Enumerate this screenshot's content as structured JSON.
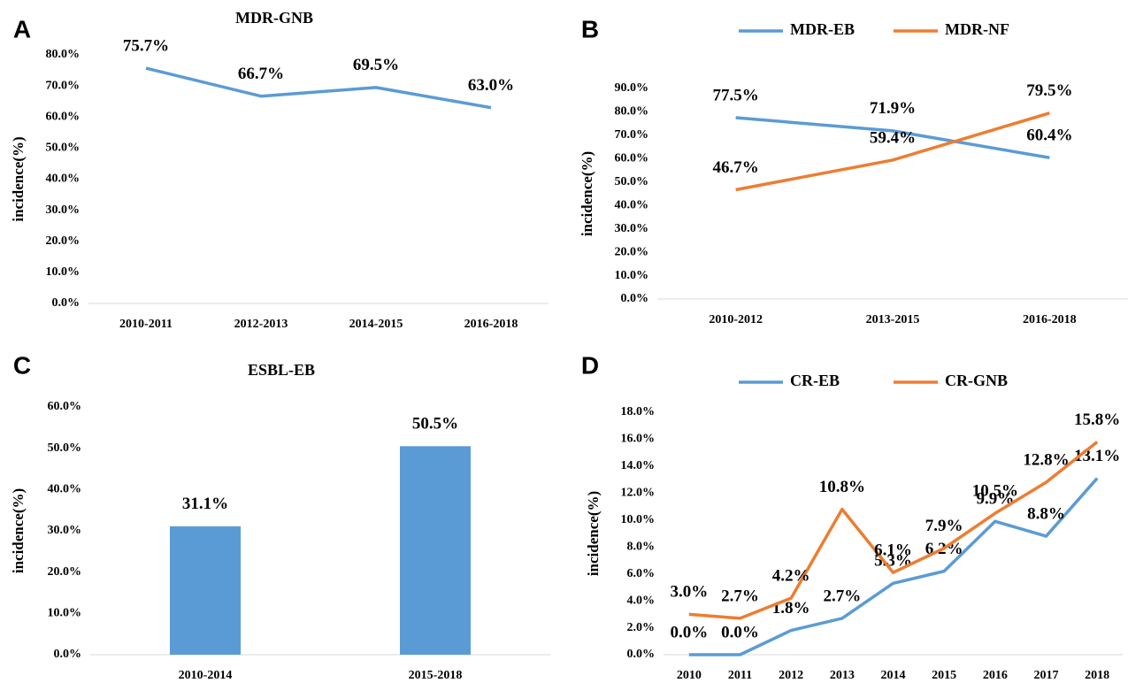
{
  "chart_data": [
    {
      "type": "line",
      "panel": "A",
      "title": "MDR-GNB",
      "y_label": "incidence(%)",
      "categories": [
        "2010-2011",
        "2012-2013",
        "2014-2015",
        "2016-2018"
      ],
      "values": [
        75.7,
        66.7,
        69.5,
        63.0
      ],
      "value_labels": [
        "75.7%",
        "66.7%",
        "69.5%",
        "63.0%"
      ],
      "color": "#5b9bd5",
      "ylim": [
        0,
        80
      ],
      "yticks": [
        {
          "value": 0,
          "label": "0.0%"
        },
        {
          "value": 10,
          "label": "10.0%"
        },
        {
          "value": 20,
          "label": "20.0%"
        },
        {
          "value": 30,
          "label": "30.0%"
        },
        {
          "value": 40,
          "label": "40.0%"
        },
        {
          "value": 50,
          "label": "50.0%"
        },
        {
          "value": 60,
          "label": "60.0%"
        },
        {
          "value": 70,
          "label": "70.0%"
        },
        {
          "value": 80,
          "label": "80.0%"
        }
      ],
      "grid": false
    },
    {
      "type": "line",
      "panel": "B",
      "y_label": "incidence(%)",
      "categories": [
        "2010-2012",
        "2013-2015",
        "2016-2018"
      ],
      "series": [
        {
          "name": "MDR-EB",
          "color": "#5b9bd5",
          "values": [
            77.5,
            71.9,
            60.4
          ],
          "value_labels": [
            "77.5%",
            "71.9%",
            "60.4%"
          ]
        },
        {
          "name": "MDR-NF",
          "color": "#ed7d31",
          "values": [
            46.7,
            59.4,
            79.5
          ],
          "value_labels": [
            "46.7%",
            "59.4%",
            "79.5%"
          ]
        }
      ],
      "ylim": [
        0,
        90
      ],
      "yticks": [
        {
          "value": 0,
          "label": "0.0%"
        },
        {
          "value": 10,
          "label": "10.0%"
        },
        {
          "value": 20,
          "label": "20.0%"
        },
        {
          "value": 30,
          "label": "30.0%"
        },
        {
          "value": 40,
          "label": "40.0%"
        },
        {
          "value": 50,
          "label": "50.0%"
        },
        {
          "value": 60,
          "label": "60.0%"
        },
        {
          "value": 70,
          "label": "70.0%"
        },
        {
          "value": 80,
          "label": "80.0%"
        },
        {
          "value": 90,
          "label": "90.0%"
        }
      ],
      "legend": "top",
      "grid": false
    },
    {
      "type": "bar",
      "panel": "C",
      "title": "ESBL-EB",
      "y_label": "incidence(%)",
      "categories": [
        "2010-2014",
        "2015-2018"
      ],
      "values": [
        31.1,
        50.5
      ],
      "value_labels": [
        "31.1%",
        "50.5%"
      ],
      "color": "#5b9bd5",
      "ylim": [
        0,
        60
      ],
      "yticks": [
        {
          "value": 0,
          "label": "0.0%"
        },
        {
          "value": 10,
          "label": "10.0%"
        },
        {
          "value": 20,
          "label": "20.0%"
        },
        {
          "value": 30,
          "label": "30.0%"
        },
        {
          "value": 40,
          "label": "40.0%"
        },
        {
          "value": 50,
          "label": "50.0%"
        },
        {
          "value": 60,
          "label": "60.0%"
        }
      ],
      "grid": false
    },
    {
      "type": "line",
      "panel": "D",
      "y_label": "incidence(%)",
      "categories": [
        "2010",
        "2011",
        "2012",
        "2013",
        "2014",
        "2015",
        "2016",
        "2017",
        "2018"
      ],
      "series": [
        {
          "name": "CR-EB",
          "color": "#5b9bd5",
          "values": [
            0.0,
            0.0,
            1.8,
            2.7,
            5.3,
            6.2,
            9.9,
            8.8,
            13.1
          ],
          "value_labels": [
            "0.0%",
            "0.0%",
            "1.8%",
            "2.7%",
            "5.3%",
            "6.2%",
            "9.9%",
            "8.8%",
            "13.1%"
          ]
        },
        {
          "name": "CR-GNB",
          "color": "#ed7d31",
          "values": [
            3.0,
            2.7,
            4.2,
            10.8,
            6.1,
            7.9,
            10.5,
            12.8,
            15.8
          ],
          "value_labels": [
            "3.0%",
            "2.7%",
            "4.2%",
            "10.8%",
            "6.1%",
            "7.9%",
            "10.5%",
            "12.8%",
            "15.8%"
          ]
        }
      ],
      "ylim": [
        0,
        18
      ],
      "yticks": [
        {
          "value": 0,
          "label": "0.0%"
        },
        {
          "value": 2,
          "label": "2.0%"
        },
        {
          "value": 4,
          "label": "4.0%"
        },
        {
          "value": 6,
          "label": "6.0%"
        },
        {
          "value": 8,
          "label": "8.0%"
        },
        {
          "value": 10,
          "label": "10.0%"
        },
        {
          "value": 12,
          "label": "12.0%"
        },
        {
          "value": 14,
          "label": "14.0%"
        },
        {
          "value": 16,
          "label": "16.0%"
        },
        {
          "value": 18,
          "label": "18.0%"
        }
      ],
      "legend": "top",
      "grid": false
    }
  ]
}
